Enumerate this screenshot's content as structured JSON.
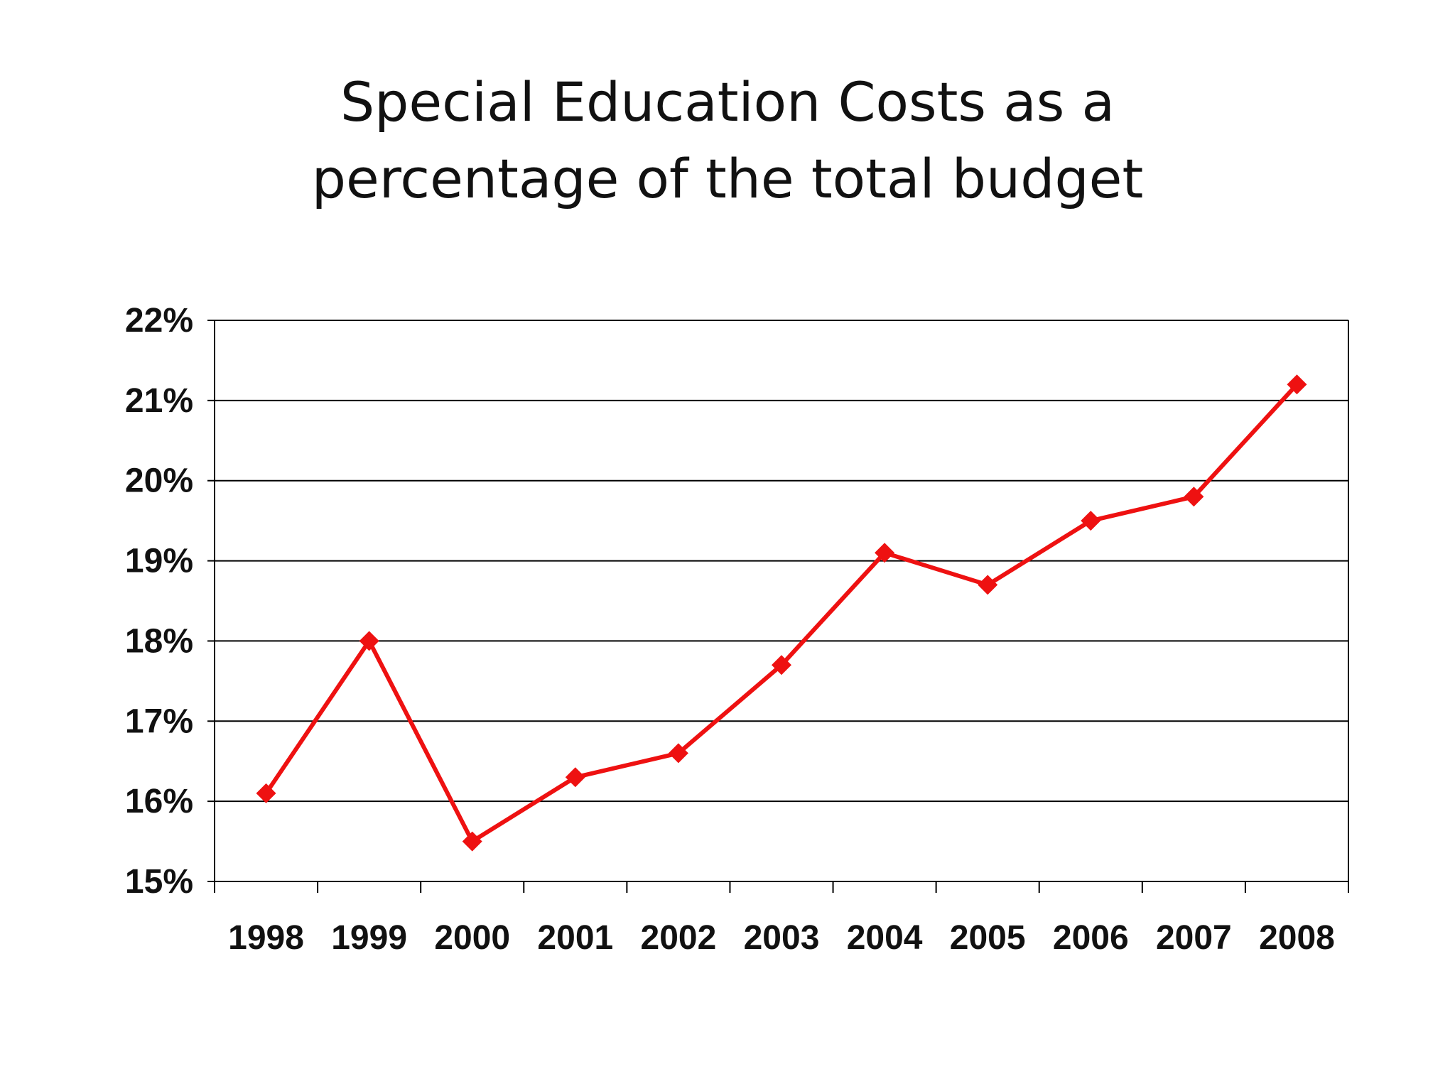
{
  "title_lines": [
    "Special Education Costs as a",
    "percentage of the total budget"
  ],
  "chart_data": {
    "type": "line",
    "title": "Special Education Costs as a percentage of the total budget",
    "xlabel": "",
    "ylabel": "",
    "categories": [
      "1998",
      "1999",
      "2000",
      "2001",
      "2002",
      "2003",
      "2004",
      "2005",
      "2006",
      "2007",
      "2008"
    ],
    "series": [
      {
        "values": [
          16.1,
          18.0,
          15.5,
          16.3,
          16.6,
          17.7,
          19.1,
          18.7,
          19.5,
          19.8,
          21.2
        ],
        "color": "#ee1111",
        "marker": "diamond"
      }
    ],
    "ylim": [
      15,
      22
    ],
    "yticks": [
      15,
      16,
      17,
      18,
      19,
      20,
      21,
      22
    ],
    "ytick_labels": [
      "15%",
      "16%",
      "17%",
      "18%",
      "19%",
      "20%",
      "21%",
      "22%"
    ],
    "grid": true,
    "legend": "none"
  }
}
